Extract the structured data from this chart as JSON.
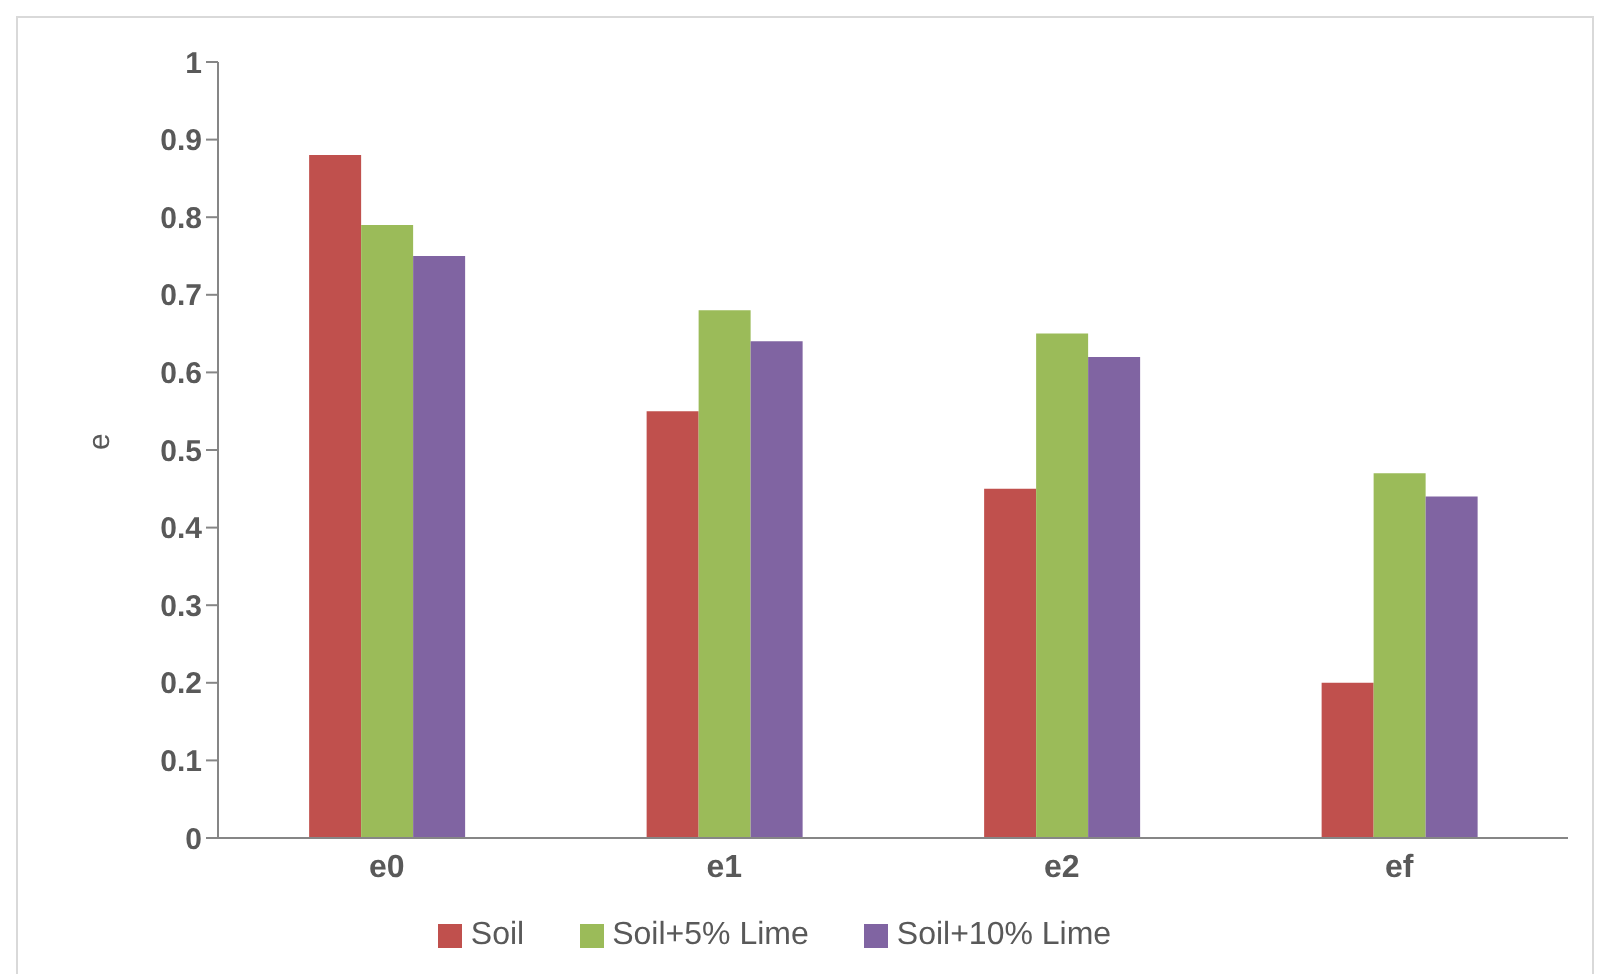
{
  "chart_data": {
    "type": "bar",
    "ylabel": "e",
    "categories": [
      "e0",
      "e1",
      "e2",
      "ef"
    ],
    "series": [
      {
        "name": "Soil",
        "color": "#c0504d",
        "values": [
          0.88,
          0.55,
          0.45,
          0.2
        ]
      },
      {
        "name": "Soil+5% Lime",
        "color": "#9bbb59",
        "values": [
          0.79,
          0.68,
          0.65,
          0.47
        ]
      },
      {
        "name": "Soil+10% Lime",
        "color": "#8064a2",
        "values": [
          0.75,
          0.64,
          0.62,
          0.44
        ]
      }
    ],
    "ylim": [
      0,
      1
    ],
    "yticks": [
      0,
      0.1,
      0.2,
      0.3,
      0.4,
      0.5,
      0.6,
      0.7,
      0.8,
      0.9,
      1
    ],
    "grid": false,
    "legend": "bottom"
  }
}
